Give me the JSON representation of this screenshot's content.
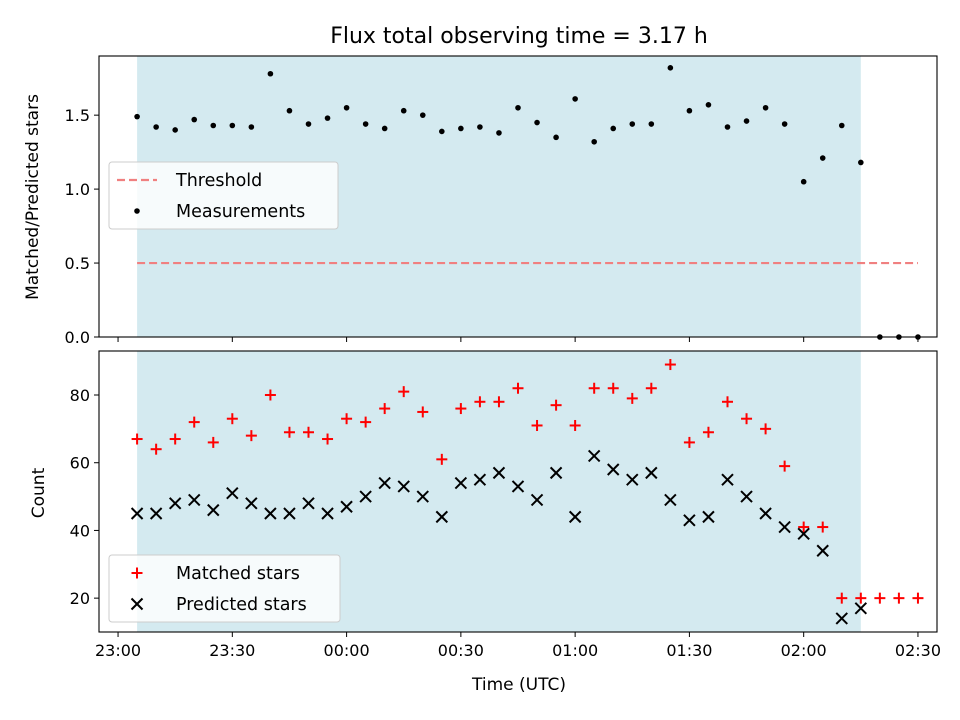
{
  "title": "Flux total observing time = 3.17 h",
  "xlabel": "Time (UTC)",
  "x_tick_labels": [
    "23:00",
    "23:30",
    "00:00",
    "00:30",
    "01:00",
    "01:30",
    "02:00",
    "02:30"
  ],
  "chart_data": [
    {
      "type": "scatter",
      "title": "Flux total observing time = 3.17 h",
      "ylabel": "Matched/Predicted stars",
      "xlim": [
        "23:00",
        "02:35"
      ],
      "ylim": [
        0,
        1.9
      ],
      "y_ticks": [
        "0.0",
        "0.5",
        "1.0",
        "1.5"
      ],
      "legend_position": "center-left",
      "observing_window": {
        "start": "23:05",
        "end": "02:15",
        "color": "#d4eaf0"
      },
      "threshold": {
        "name": "Threshold",
        "y": 0.5,
        "x_start": "23:05",
        "x_end": "02:30",
        "color": "#f08080",
        "style": "dashed"
      },
      "series": [
        {
          "name": "Measurements",
          "color": "#000000",
          "marker": "dot",
          "x": [
            "23:05",
            "23:10",
            "23:15",
            "23:20",
            "23:25",
            "23:30",
            "23:35",
            "23:40",
            "23:45",
            "23:50",
            "23:55",
            "00:00",
            "00:05",
            "00:10",
            "00:15",
            "00:20",
            "00:25",
            "00:30",
            "00:35",
            "00:40",
            "00:45",
            "00:50",
            "00:55",
            "01:00",
            "01:05",
            "01:10",
            "01:15",
            "01:20",
            "01:25",
            "01:30",
            "01:35",
            "01:40",
            "01:45",
            "01:50",
            "01:55",
            "02:00",
            "02:05",
            "02:10",
            "02:15",
            "02:20",
            "02:25",
            "02:30"
          ],
          "y": [
            1.49,
            1.42,
            1.4,
            1.47,
            1.43,
            1.43,
            1.42,
            1.78,
            1.53,
            1.44,
            1.48,
            1.55,
            1.44,
            1.41,
            1.53,
            1.5,
            1.39,
            1.41,
            1.42,
            1.38,
            1.55,
            1.45,
            1.35,
            1.61,
            1.32,
            1.41,
            1.44,
            1.44,
            1.82,
            1.53,
            1.57,
            1.42,
            1.46,
            1.55,
            1.44,
            1.05,
            1.21,
            1.43,
            1.18,
            0.0,
            0.0,
            0.0
          ]
        }
      ]
    },
    {
      "type": "scatter",
      "ylabel": "Count",
      "xlabel": "Time (UTC)",
      "xlim": [
        "23:00",
        "02:35"
      ],
      "ylim": [
        10,
        93
      ],
      "y_ticks": [
        "20",
        "40",
        "60",
        "80"
      ],
      "legend_position": "lower-left",
      "observing_window": {
        "start": "23:05",
        "end": "02:15",
        "color": "#d4eaf0"
      },
      "series": [
        {
          "name": "Matched stars",
          "color": "#ff0000",
          "marker": "plus",
          "x": [
            "23:05",
            "23:10",
            "23:15",
            "23:20",
            "23:25",
            "23:30",
            "23:35",
            "23:40",
            "23:45",
            "23:50",
            "23:55",
            "00:00",
            "00:05",
            "00:10",
            "00:15",
            "00:20",
            "00:25",
            "00:30",
            "00:35",
            "00:40",
            "00:45",
            "00:50",
            "00:55",
            "01:00",
            "01:05",
            "01:10",
            "01:15",
            "01:20",
            "01:25",
            "01:30",
            "01:35",
            "01:40",
            "01:45",
            "01:50",
            "01:55",
            "02:00",
            "02:05",
            "02:10",
            "02:15",
            "02:20",
            "02:25",
            "02:30"
          ],
          "y": [
            67,
            64,
            67,
            72,
            66,
            73,
            68,
            80,
            69,
            69,
            67,
            73,
            72,
            76,
            81,
            75,
            61,
            76,
            78,
            78,
            82,
            71,
            77,
            71,
            82,
            82,
            79,
            82,
            89,
            66,
            69,
            78,
            73,
            70,
            59,
            41,
            41,
            20,
            20,
            20,
            20,
            20
          ]
        },
        {
          "name": "Predicted stars",
          "color": "#000000",
          "marker": "x",
          "x": [
            "23:05",
            "23:10",
            "23:15",
            "23:20",
            "23:25",
            "23:30",
            "23:35",
            "23:40",
            "23:45",
            "23:50",
            "23:55",
            "00:00",
            "00:05",
            "00:10",
            "00:15",
            "00:20",
            "00:25",
            "00:30",
            "00:35",
            "00:40",
            "00:45",
            "00:50",
            "00:55",
            "01:00",
            "01:05",
            "01:10",
            "01:15",
            "01:20",
            "01:25",
            "01:30",
            "01:35",
            "01:40",
            "01:45",
            "01:50",
            "01:55",
            "02:00",
            "02:05",
            "02:10",
            "02:15"
          ],
          "y": [
            45,
            45,
            48,
            49,
            46,
            51,
            48,
            45,
            45,
            48,
            45,
            47,
            50,
            54,
            53,
            50,
            44,
            54,
            55,
            57,
            53,
            49,
            57,
            44,
            62,
            58,
            55,
            57,
            49,
            43,
            44,
            55,
            50,
            45,
            41,
            39,
            34,
            14,
            17
          ]
        }
      ]
    }
  ]
}
